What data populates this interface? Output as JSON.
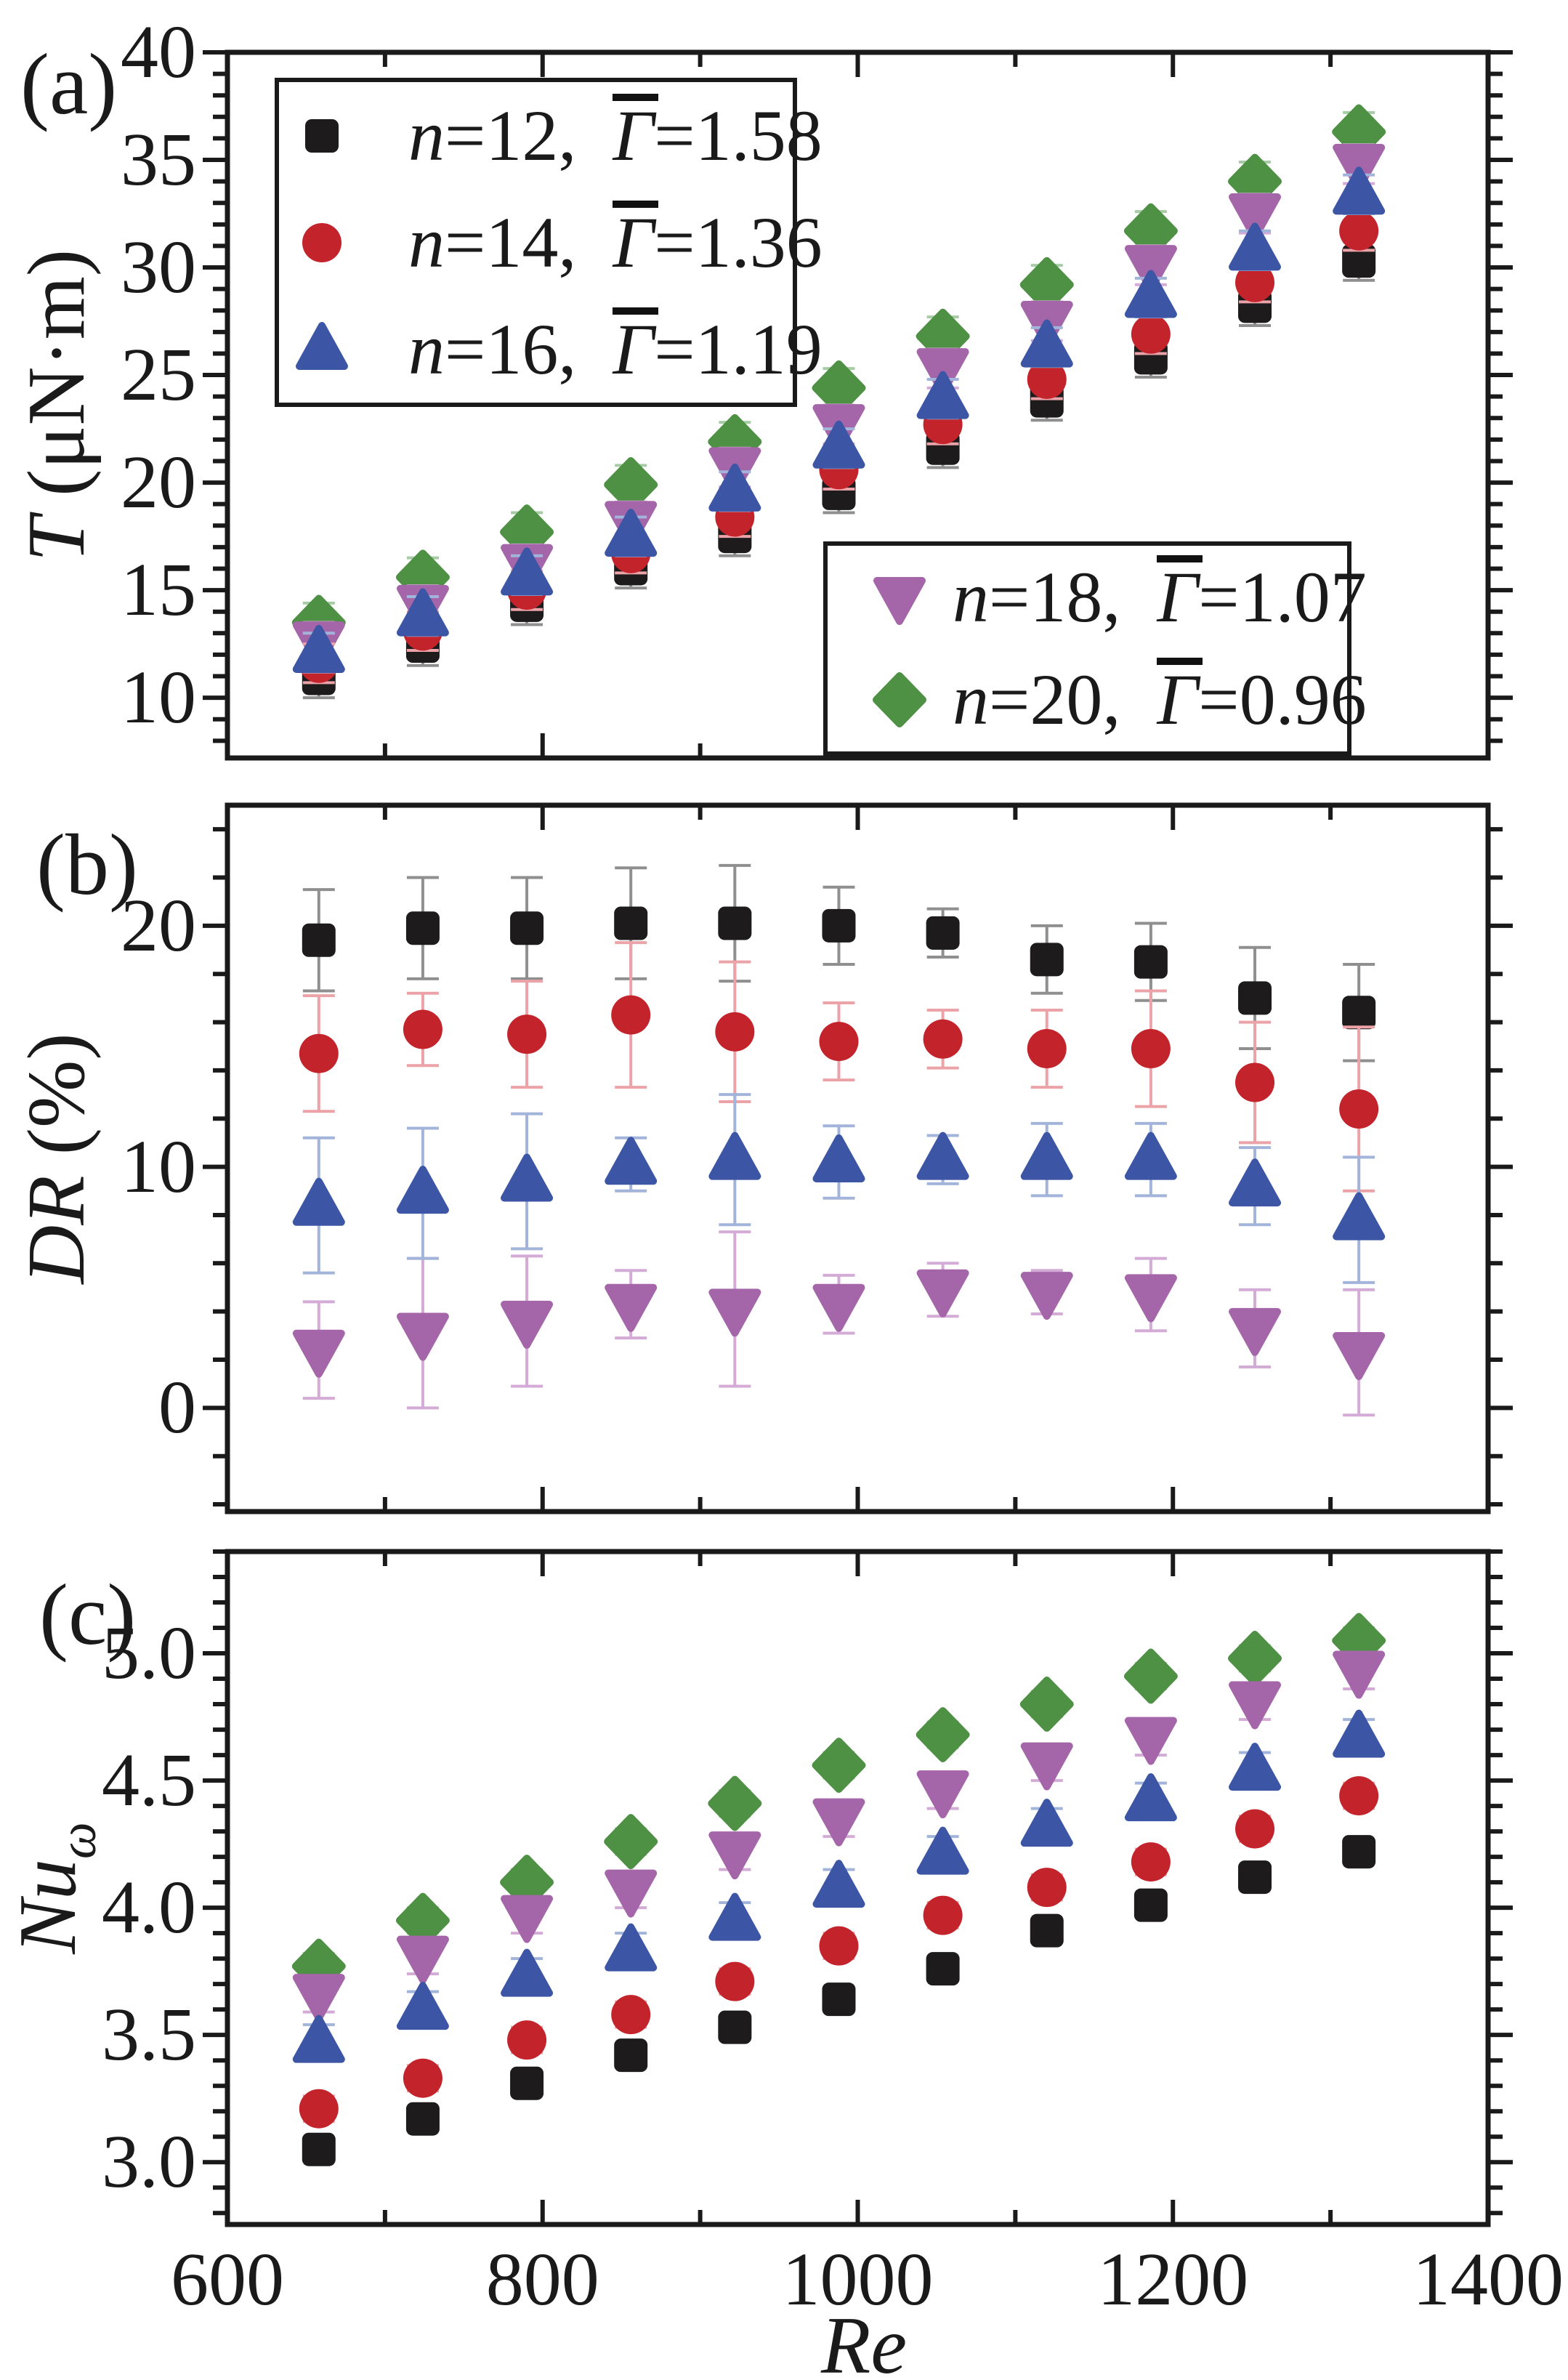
{
  "chart_data": {
    "type": "scatter",
    "title": "",
    "x_axis": {
      "label": "Re",
      "range": [
        600,
        1400
      ],
      "major_ticks": [
        {
          "v": 600,
          "label": "600"
        },
        {
          "v": 800,
          "label": "800"
        },
        {
          "v": 1000,
          "label": "1000"
        },
        {
          "v": 1200,
          "label": "1200"
        },
        {
          "v": 1400,
          "label": "1400"
        }
      ],
      "minor_ticks": [
        700,
        900,
        1100,
        1300
      ]
    },
    "x_values": [
      658,
      724,
      790,
      856,
      922,
      988,
      1054,
      1120,
      1186,
      1252,
      1318
    ],
    "panels": {
      "a": {
        "letter": "(a)",
        "ylabel_var": "T",
        "ylabel_rest": " (μN·m)",
        "ylabel_sub": "",
        "range": [
          7.2,
          40
        ],
        "y_major": [
          {
            "v": 10,
            "label": "10"
          },
          {
            "v": 15,
            "label": "15"
          },
          {
            "v": 20,
            "label": "20"
          },
          {
            "v": 25,
            "label": "25"
          },
          {
            "v": 30,
            "label": "30"
          },
          {
            "v": 35,
            "label": "35"
          },
          {
            "v": 40,
            "label": "40"
          }
        ],
        "y_minor_step": 1
      },
      "b": {
        "letter": "(b)",
        "ylabel_var": "DR",
        "ylabel_rest": " (%)",
        "ylabel_sub": "",
        "range": [
          -4.3,
          25
        ],
        "y_major": [
          {
            "v": 0,
            "label": "0"
          },
          {
            "v": 10,
            "label": "10"
          },
          {
            "v": 20,
            "label": "20"
          }
        ],
        "y_minor_step": 2
      },
      "c": {
        "letter": "(c)",
        "ylabel_var": "Nu",
        "ylabel_rest": "",
        "ylabel_sub": "ω",
        "range": [
          2.755,
          5.4
        ],
        "y_major": [
          {
            "v": 3.0,
            "label": "3.0"
          },
          {
            "v": 3.5,
            "label": "3.5"
          },
          {
            "v": 4.0,
            "label": "4.0"
          },
          {
            "v": 4.5,
            "label": "4.5"
          },
          {
            "v": 5.0,
            "label": "5.0"
          }
        ],
        "y_minor_step": 0.1
      }
    },
    "series": [
      {
        "name": "n=12",
        "marker": "square",
        "color": "#1d1b1c",
        "err_color": "#8f8f8f",
        "legend": {
          "n": "n",
          "n_eq": "=12,",
          "gamma": "Γ",
          "gamma_eq": "=1.58"
        },
        "a": [
          10.9,
          12.4,
          14.3,
          16.0,
          17.5,
          19.5,
          21.6,
          23.8,
          25.8,
          28.2,
          30.3
        ],
        "a_err": 0.9,
        "b": [
          19.4,
          19.9,
          19.9,
          20.1,
          20.1,
          20.0,
          19.7,
          18.6,
          18.5,
          17.0,
          16.4
        ],
        "b_err": [
          2.1,
          2.1,
          2.1,
          2.3,
          2.4,
          1.6,
          1.0,
          1.4,
          1.6,
          2.1,
          2.0
        ],
        "c": [
          3.05,
          3.17,
          3.31,
          3.42,
          3.53,
          3.64,
          3.76,
          3.91,
          4.01,
          4.12,
          4.22
        ],
        "c_err": 0.03
      },
      {
        "name": "n=14",
        "marker": "circle",
        "color": "#c3242c",
        "err_color": "#eba3a8",
        "legend": {
          "n": "n",
          "n_eq": "=14,",
          "gamma": "Γ",
          "gamma_eq": "=1.36"
        },
        "a": [
          11.6,
          13.1,
          15.0,
          16.7,
          18.4,
          20.6,
          22.7,
          24.8,
          26.9,
          29.3,
          31.7
        ],
        "a_err": 0.9,
        "b": [
          14.7,
          15.7,
          15.5,
          16.3,
          15.6,
          15.2,
          15.3,
          14.9,
          14.9,
          13.5,
          12.4
        ],
        "b_err": [
          2.4,
          1.5,
          2.2,
          3.0,
          2.9,
          1.6,
          1.2,
          1.6,
          2.4,
          2.5,
          3.4
        ],
        "c": [
          3.21,
          3.33,
          3.48,
          3.58,
          3.71,
          3.85,
          3.97,
          4.08,
          4.18,
          4.31,
          4.44
        ],
        "c_err": 0.05
      },
      {
        "name": "n=16",
        "marker": "triangle-up",
        "color": "#3c56a5",
        "err_color": "#a3b4da",
        "legend": {
          "n": "n",
          "n_eq": "=16,",
          "gamma": "Γ",
          "gamma_eq": "=1.19"
        },
        "a": [
          12.1,
          13.8,
          15.7,
          17.5,
          19.6,
          21.6,
          23.9,
          26.3,
          28.6,
          30.8,
          33.4
        ],
        "a_err": 0.9,
        "b": [
          8.4,
          8.9,
          9.4,
          10.1,
          10.3,
          10.2,
          10.3,
          10.3,
          10.3,
          9.2,
          7.8
        ],
        "b_err": [
          2.8,
          2.7,
          2.8,
          1.1,
          2.7,
          1.5,
          1.0,
          1.5,
          1.5,
          1.6,
          2.6
        ],
        "c": [
          3.47,
          3.6,
          3.73,
          3.83,
          3.95,
          4.08,
          4.21,
          4.32,
          4.42,
          4.54,
          4.67
        ],
        "c_err": 0.07
      },
      {
        "name": "n=18",
        "marker": "triangle-down",
        "color": "#a565a9",
        "err_color": "#d4abd6",
        "legend": {
          "n": "n",
          "n_eq": "=18,",
          "gamma": "Γ",
          "gamma_eq": "=1.07"
        },
        "a": [
          12.6,
          14.3,
          16.2,
          18.2,
          20.7,
          22.7,
          25.3,
          27.5,
          30.1,
          32.5,
          34.8
        ],
        "a_err": 0.9,
        "b": [
          2.4,
          3.1,
          3.6,
          4.3,
          4.1,
          4.3,
          4.9,
          4.8,
          4.7,
          3.3,
          2.3
        ],
        "b_err": [
          2.0,
          3.1,
          2.7,
          1.4,
          3.2,
          1.2,
          1.1,
          0.9,
          1.5,
          1.6,
          2.6
        ],
        "c": [
          3.66,
          3.81,
          3.97,
          4.07,
          4.22,
          4.35,
          4.46,
          4.57,
          4.67,
          4.81,
          4.93
        ],
        "c_err": 0.07
      },
      {
        "name": "n=20",
        "marker": "diamond",
        "color": "#4e9144",
        "err_color": "#a7cba5",
        "legend": {
          "n": "n",
          "n_eq": "=20,",
          "gamma": "Γ",
          "gamma_eq": "=0.96"
        },
        "a": [
          13.5,
          15.6,
          17.7,
          19.9,
          21.9,
          24.4,
          26.8,
          29.2,
          31.7,
          34.0,
          36.3
        ],
        "a_err": 0.9,
        "b": null,
        "b_err": null,
        "c": [
          3.77,
          3.95,
          4.1,
          4.26,
          4.41,
          4.56,
          4.68,
          4.8,
          4.91,
          4.98,
          5.05
        ],
        "c_err": 0.05
      }
    ],
    "legends": [
      {
        "entries": [
          0,
          1,
          2
        ]
      },
      {
        "entries": [
          3,
          4
        ]
      }
    ]
  }
}
